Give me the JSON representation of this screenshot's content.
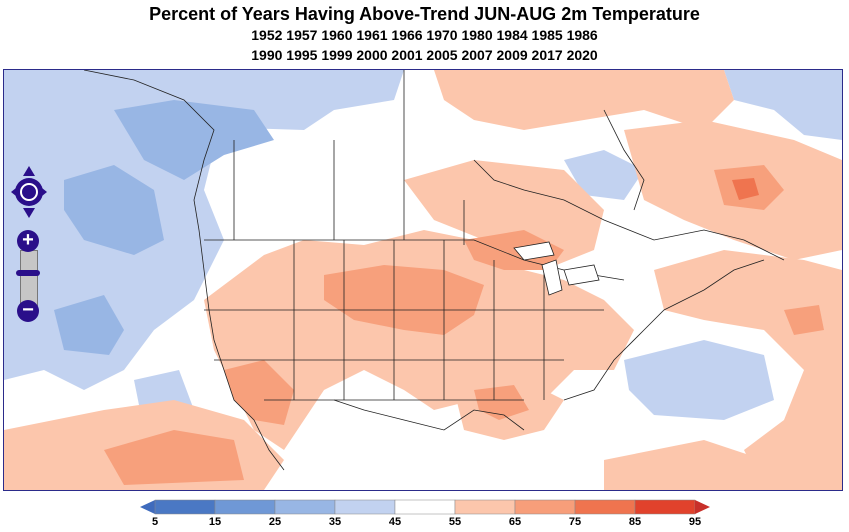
{
  "header": {
    "title": "Percent of Years Having Above-Trend JUN-AUG 2m Temperature",
    "years_line1": "1952 1957 1960 1961 1966 1970 1980 1984 1985 1986",
    "years_line2": "1990 1995 1999 2000 2001 2005 2007 2009 2017 2020"
  },
  "map_controls": {
    "pan_label": "pan",
    "zoom_in_label": "+",
    "zoom_out_label": "−"
  },
  "legend": {
    "ticks": [
      "5",
      "15",
      "25",
      "35",
      "45",
      "55",
      "65",
      "75",
      "85",
      "95"
    ],
    "colors": [
      "#4a78c4",
      "#6f98d6",
      "#98b6e4",
      "#c2d2f0",
      "#ffffff",
      "#fcc6ac",
      "#f79e7a",
      "#ef744f",
      "#e1422c"
    ],
    "left_arrow_color": "#3f6bbd",
    "right_arrow_color": "#c8302a"
  },
  "colors": {
    "warm_light": "#fcc6ac",
    "warm": "#f7a07c",
    "warm_dark": "#ef744f",
    "cool_light": "#c2d2f0",
    "cool": "#98b6e4",
    "border": "#2b2b8a"
  }
}
